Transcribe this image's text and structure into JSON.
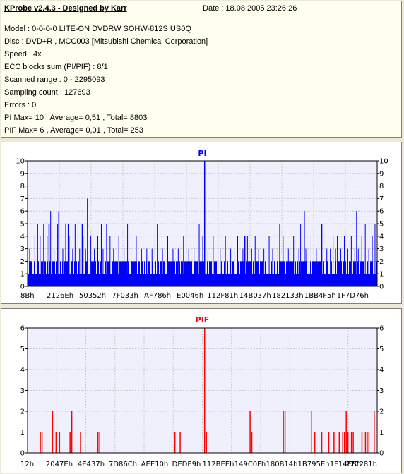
{
  "header": {
    "title": "KProbe v2.4.3 - Designed by Karr",
    "date": "Date : 18.08.2005 23:26:26"
  },
  "info_lines": [
    "Model : 0-0-0-0 LITE-ON DVDRW SOHW-812S  US0Q",
    "Disc : DVD+R , MCC003 [Mitsubishi Chemical Corporation]",
    "Speed : 4x",
    "ECC blocks sum (PI/PIF) : 8/1",
    "Scanned range : 0 - 2295093",
    "Sampling count : 127693",
    "Errors : 0",
    "PI Max= 10 , Average= 0,51 , Total= 8803",
    "PIF Max= 6 , Average= 0,01 , Total= 253"
  ],
  "chart_data": [
    {
      "type": "bar",
      "title": "PI",
      "color": "#0000ff",
      "ylim": [
        0,
        10
      ],
      "yticks": [
        0,
        1,
        2,
        3,
        4,
        5,
        6,
        7,
        8,
        9,
        10
      ],
      "xtick_labels": [
        "8Bh",
        "2126Eh",
        "50352h",
        "7F033h",
        "AF786h",
        "E0046h",
        "112F81h",
        "14B037h",
        "182133h",
        "1BB4F5h",
        "1F7D76h"
      ],
      "grid": true,
      "baseline_level": 2,
      "peaks": [
        {
          "x": 0.005,
          "v": 3
        },
        {
          "x": 0.02,
          "v": 4
        },
        {
          "x": 0.028,
          "v": 5
        },
        {
          "x": 0.035,
          "v": 4
        },
        {
          "x": 0.045,
          "v": 5
        },
        {
          "x": 0.055,
          "v": 4
        },
        {
          "x": 0.065,
          "v": 6
        },
        {
          "x": 0.075,
          "v": 3
        },
        {
          "x": 0.085,
          "v": 5
        },
        {
          "x": 0.1,
          "v": 3
        },
        {
          "x": 0.108,
          "v": 5
        },
        {
          "x": 0.118,
          "v": 4
        },
        {
          "x": 0.128,
          "v": 3
        },
        {
          "x": 0.135,
          "v": 5
        },
        {
          "x": 0.148,
          "v": 3
        },
        {
          "x": 0.158,
          "v": 4
        },
        {
          "x": 0.165,
          "v": 3
        },
        {
          "x": 0.17,
          "v": 7
        },
        {
          "x": 0.18,
          "v": 4
        },
        {
          "x": 0.19,
          "v": 3
        },
        {
          "x": 0.2,
          "v": 4
        },
        {
          "x": 0.215,
          "v": 3
        },
        {
          "x": 0.225,
          "v": 5
        },
        {
          "x": 0.235,
          "v": 4
        },
        {
          "x": 0.245,
          "v": 3
        },
        {
          "x": 0.26,
          "v": 4
        },
        {
          "x": 0.275,
          "v": 3
        },
        {
          "x": 0.285,
          "v": 5
        },
        {
          "x": 0.295,
          "v": 3
        },
        {
          "x": 0.31,
          "v": 4
        },
        {
          "x": 0.325,
          "v": 3
        },
        {
          "x": 0.34,
          "v": 3
        },
        {
          "x": 0.355,
          "v": 3
        },
        {
          "x": 0.37,
          "v": 5
        },
        {
          "x": 0.385,
          "v": 3
        },
        {
          "x": 0.4,
          "v": 4
        },
        {
          "x": 0.415,
          "v": 3
        },
        {
          "x": 0.43,
          "v": 3
        },
        {
          "x": 0.445,
          "v": 4
        },
        {
          "x": 0.46,
          "v": 3
        },
        {
          "x": 0.475,
          "v": 3
        },
        {
          "x": 0.49,
          "v": 5
        },
        {
          "x": 0.5,
          "v": 3
        },
        {
          "x": 0.515,
          "v": 3
        },
        {
          "x": 0.53,
          "v": 4
        },
        {
          "x": 0.55,
          "v": 3
        },
        {
          "x": 0.565,
          "v": 4
        },
        {
          "x": 0.58,
          "v": 3
        },
        {
          "x": 0.59,
          "v": 3
        },
        {
          "x": 0.6,
          "v": 4
        },
        {
          "x": 0.615,
          "v": 3
        },
        {
          "x": 0.628,
          "v": 4
        },
        {
          "x": 0.64,
          "v": 3
        },
        {
          "x": 0.65,
          "v": 4
        },
        {
          "x": 0.66,
          "v": 3
        },
        {
          "x": 0.675,
          "v": 3
        },
        {
          "x": 0.69,
          "v": 4
        },
        {
          "x": 0.7,
          "v": 3
        },
        {
          "x": 0.715,
          "v": 3
        },
        {
          "x": 0.73,
          "v": 4
        },
        {
          "x": 0.745,
          "v": 3
        },
        {
          "x": 0.76,
          "v": 4
        },
        {
          "x": 0.775,
          "v": 3
        },
        {
          "x": 0.78,
          "v": 5
        },
        {
          "x": 0.795,
          "v": 3
        },
        {
          "x": 0.81,
          "v": 4
        },
        {
          "x": 0.825,
          "v": 3
        },
        {
          "x": 0.84,
          "v": 4
        },
        {
          "x": 0.855,
          "v": 3
        },
        {
          "x": 0.865,
          "v": 3
        },
        {
          "x": 0.873,
          "v": 4
        },
        {
          "x": 0.88,
          "v": 3
        },
        {
          "x": 0.885,
          "v": 4
        },
        {
          "x": 0.895,
          "v": 3
        },
        {
          "x": 0.905,
          "v": 4
        },
        {
          "x": 0.915,
          "v": 3
        },
        {
          "x": 0.925,
          "v": 4
        },
        {
          "x": 0.935,
          "v": 3
        },
        {
          "x": 0.945,
          "v": 3
        },
        {
          "x": 0.955,
          "v": 4
        },
        {
          "x": 0.965,
          "v": 5
        },
        {
          "x": 0.975,
          "v": 3
        },
        {
          "x": 0.985,
          "v": 4
        },
        {
          "x": 0.995,
          "v": 5
        }
      ],
      "tall_spikes": [
        {
          "x": 0.06,
          "v": 5
        },
        {
          "x": 0.088,
          "v": 6
        },
        {
          "x": 0.115,
          "v": 5
        },
        {
          "x": 0.155,
          "v": 5
        },
        {
          "x": 0.21,
          "v": 5
        },
        {
          "x": 0.5,
          "v": 4
        },
        {
          "x": 0.505,
          "v": 10
        },
        {
          "x": 0.62,
          "v": 4
        },
        {
          "x": 0.72,
          "v": 5
        },
        {
          "x": 0.79,
          "v": 6
        },
        {
          "x": 0.84,
          "v": 5
        },
        {
          "x": 0.94,
          "v": 6
        },
        {
          "x": 0.99,
          "v": 5
        }
      ]
    },
    {
      "type": "bar",
      "title": "PIF",
      "color": "#ff0000",
      "ylim": [
        0,
        6
      ],
      "yticks": [
        0,
        1,
        2,
        3,
        4,
        5,
        6
      ],
      "xtick_labels": [
        "12h",
        "2047Eh",
        "4E437h",
        "7D86Ch",
        "AEE10h",
        "DEDE9h",
        "112BEEh",
        "149C0Fh",
        "180B14h",
        "1B795Eh",
        "1F14EBh",
        "227281h"
      ],
      "grid": true,
      "bars": [
        {
          "x": 0.035,
          "v": 1
        },
        {
          "x": 0.04,
          "v": 1
        },
        {
          "x": 0.07,
          "v": 2
        },
        {
          "x": 0.08,
          "v": 1
        },
        {
          "x": 0.09,
          "v": 1
        },
        {
          "x": 0.12,
          "v": 1
        },
        {
          "x": 0.125,
          "v": 2
        },
        {
          "x": 0.15,
          "v": 1
        },
        {
          "x": 0.2,
          "v": 1
        },
        {
          "x": 0.205,
          "v": 1
        },
        {
          "x": 0.42,
          "v": 1
        },
        {
          "x": 0.435,
          "v": 1
        },
        {
          "x": 0.505,
          "v": 6
        },
        {
          "x": 0.51,
          "v": 1
        },
        {
          "x": 0.635,
          "v": 2
        },
        {
          "x": 0.64,
          "v": 1
        },
        {
          "x": 0.73,
          "v": 2
        },
        {
          "x": 0.735,
          "v": 2
        },
        {
          "x": 0.81,
          "v": 2
        },
        {
          "x": 0.82,
          "v": 1
        },
        {
          "x": 0.84,
          "v": 1
        },
        {
          "x": 0.86,
          "v": 1
        },
        {
          "x": 0.875,
          "v": 1
        },
        {
          "x": 0.89,
          "v": 1
        },
        {
          "x": 0.9,
          "v": 1
        },
        {
          "x": 0.905,
          "v": 1
        },
        {
          "x": 0.91,
          "v": 2
        },
        {
          "x": 0.915,
          "v": 1
        },
        {
          "x": 0.925,
          "v": 1
        },
        {
          "x": 0.93,
          "v": 1
        },
        {
          "x": 0.955,
          "v": 1
        },
        {
          "x": 0.965,
          "v": 1
        },
        {
          "x": 0.97,
          "v": 1
        },
        {
          "x": 0.975,
          "v": 1
        },
        {
          "x": 0.99,
          "v": 2
        }
      ]
    }
  ]
}
